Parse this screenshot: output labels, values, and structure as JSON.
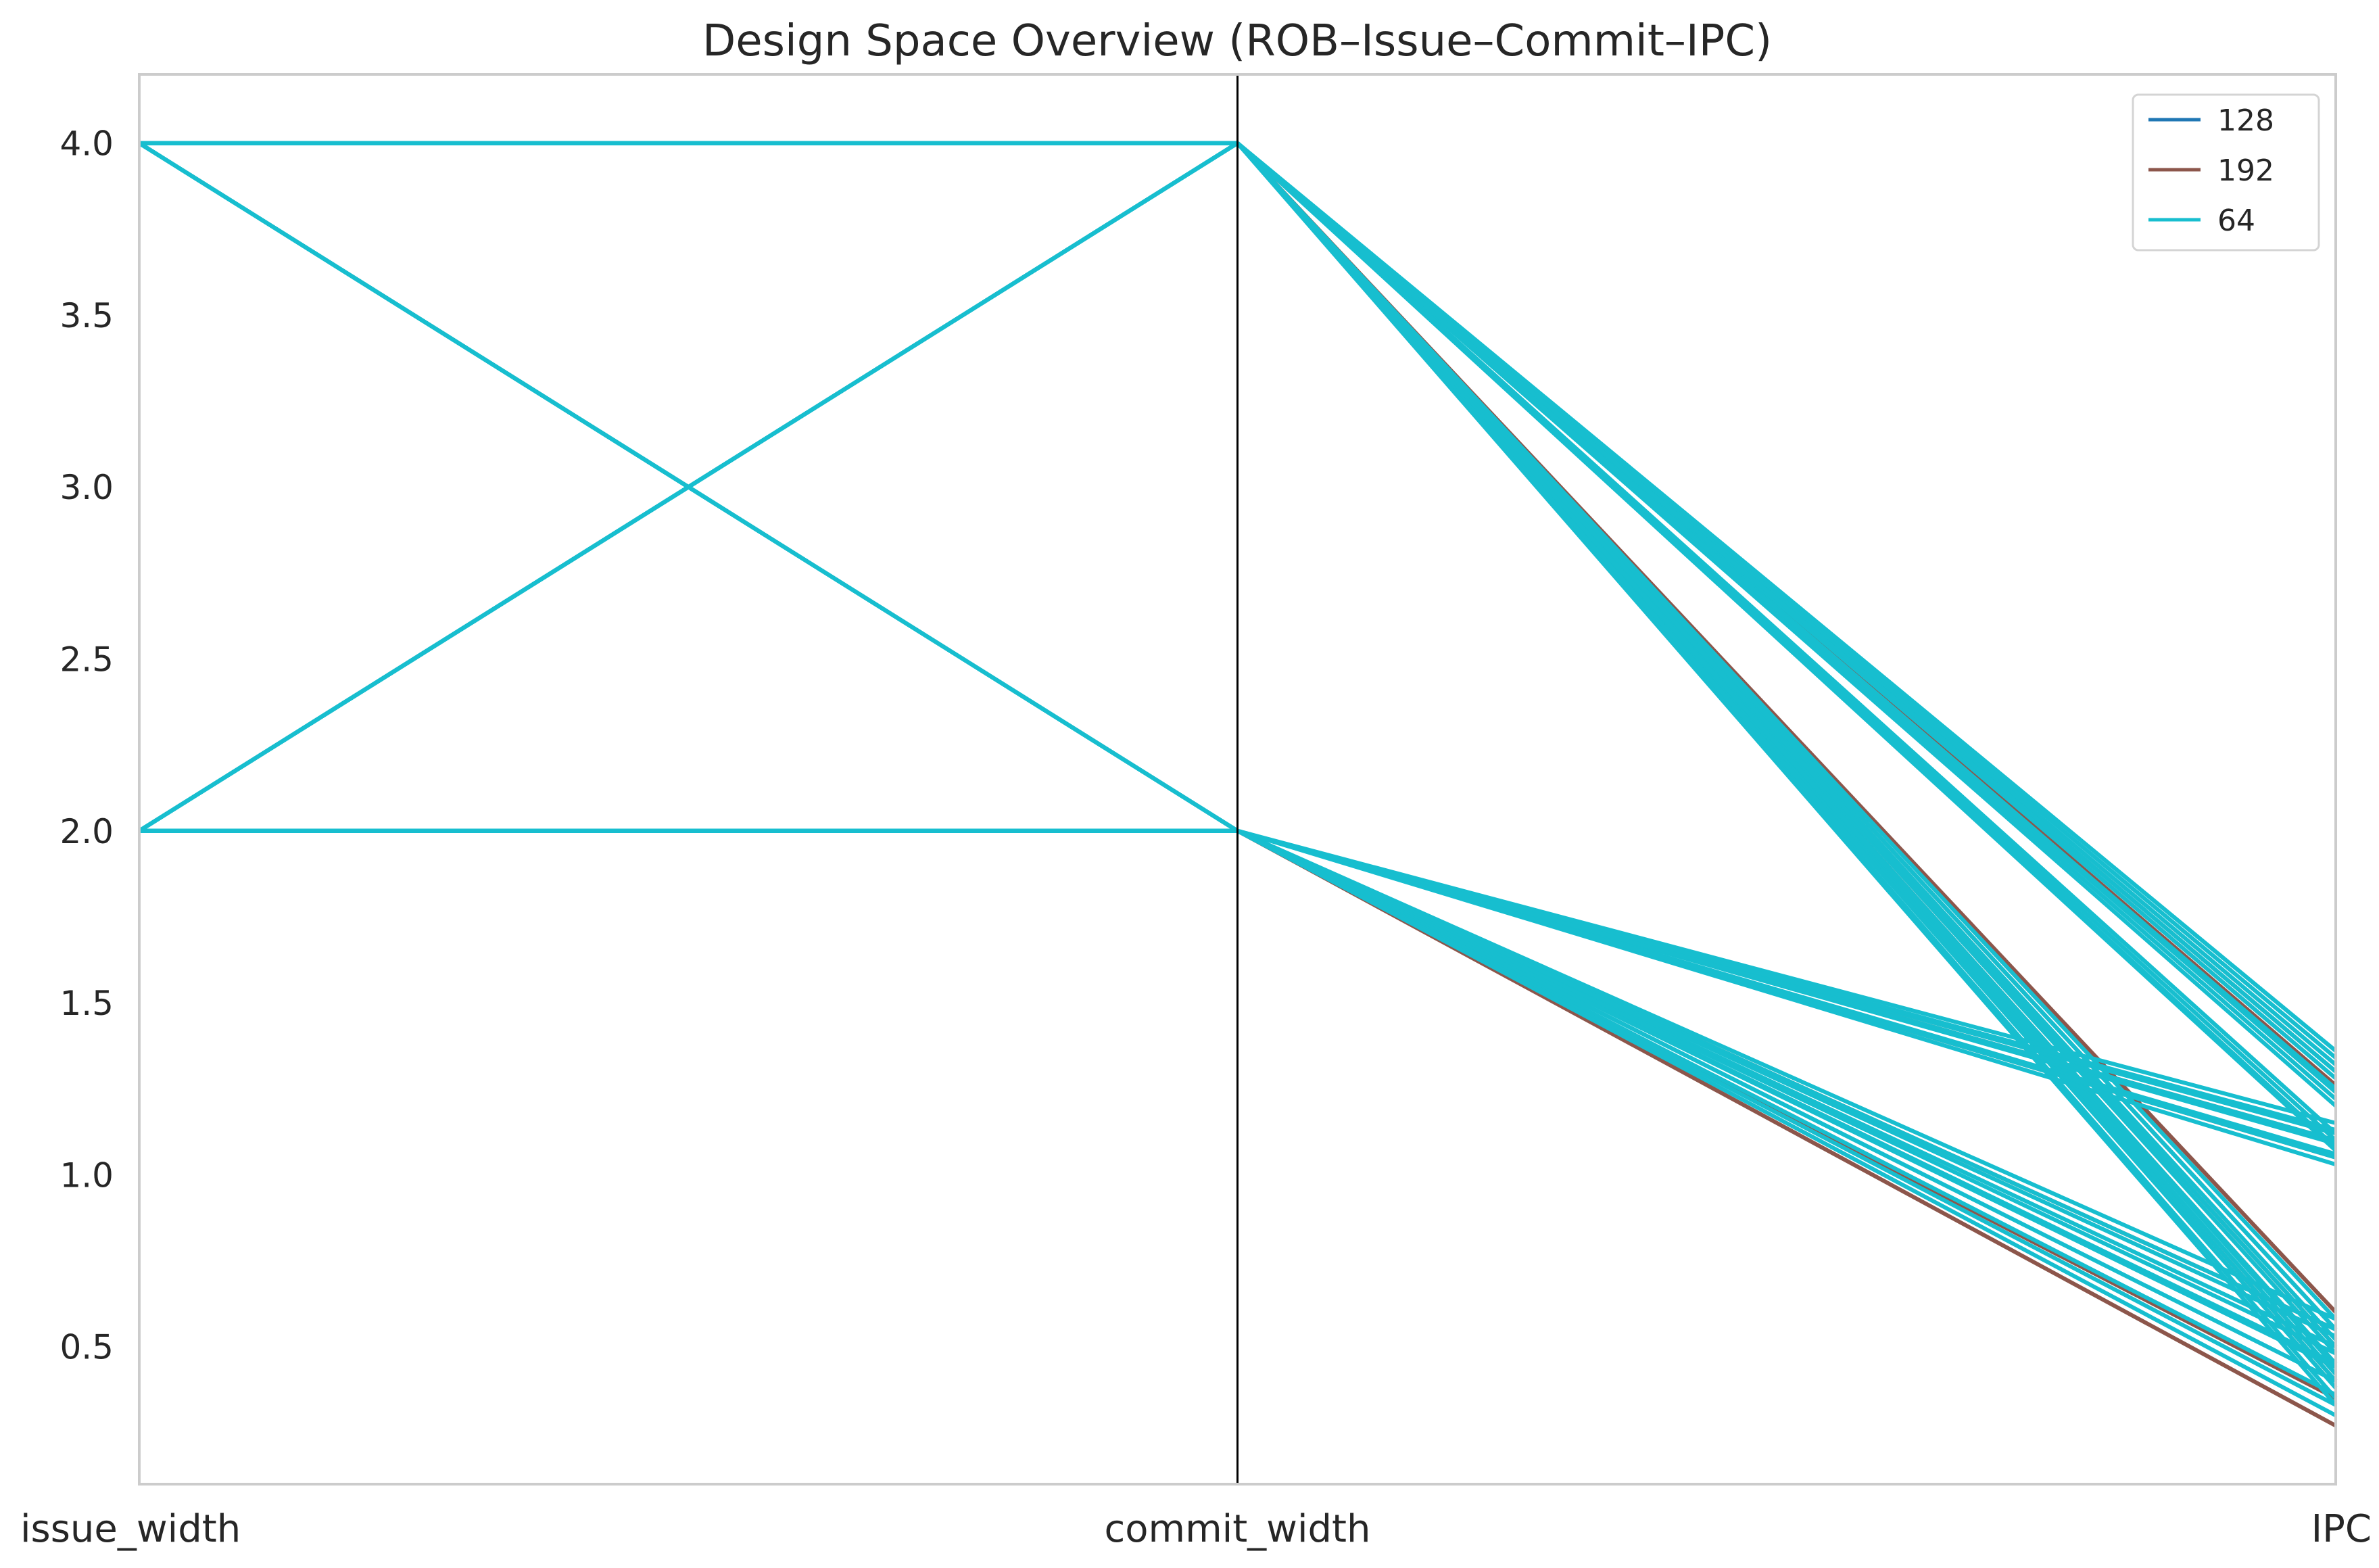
{
  "chart_data": {
    "type": "parallel_coordinates",
    "title": "Design Space Overview (ROB–Issue–Commit–IPC)",
    "axes": [
      "issue_width",
      "commit_width",
      "IPC"
    ],
    "yticks": [
      "0.5",
      "1.0",
      "1.5",
      "2.0",
      "2.5",
      "3.0",
      "3.5",
      "4.0"
    ],
    "ylim": [
      0.1,
      4.2
    ],
    "grid": false,
    "legend": {
      "placement": "top-right",
      "entries": [
        {
          "label": "128",
          "color": "#1f77b4"
        },
        {
          "label": "192",
          "color": "#8c564b"
        },
        {
          "label": "64",
          "color": "#17becf"
        }
      ]
    },
    "series": [
      {
        "name": "128",
        "color": "#1f77b4",
        "lines": []
      },
      {
        "name": "192",
        "color": "#8c564b",
        "lines": [
          [
            4,
            4,
            1.3
          ],
          [
            4,
            4,
            1.26
          ],
          [
            4,
            4,
            0.6
          ],
          [
            4,
            4,
            0.55
          ],
          [
            4,
            4,
            0.5
          ],
          [
            2,
            4,
            0.45
          ],
          [
            2,
            4,
            0.4
          ],
          [
            4,
            2,
            1.1
          ],
          [
            4,
            2,
            1.05
          ],
          [
            2,
            2,
            0.55
          ],
          [
            2,
            2,
            0.35
          ],
          [
            2,
            2,
            0.27
          ]
        ]
      },
      {
        "name": "64",
        "color": "#17becf",
        "lines": [
          [
            4,
            4,
            1.36
          ],
          [
            4,
            4,
            1.34
          ],
          [
            4,
            4,
            1.32
          ],
          [
            4,
            4,
            1.3
          ],
          [
            4,
            4,
            1.28
          ],
          [
            4,
            4,
            1.25
          ],
          [
            4,
            4,
            1.22
          ],
          [
            4,
            4,
            1.2
          ],
          [
            4,
            4,
            1.12
          ],
          [
            4,
            4,
            1.1
          ],
          [
            4,
            4,
            1.07
          ],
          [
            4,
            4,
            0.58
          ],
          [
            4,
            4,
            0.55
          ],
          [
            4,
            4,
            0.52
          ],
          [
            4,
            4,
            0.48
          ],
          [
            4,
            4,
            0.45
          ],
          [
            4,
            4,
            0.42
          ],
          [
            4,
            4,
            0.4
          ],
          [
            4,
            4,
            0.38
          ],
          [
            4,
            4,
            0.35
          ],
          [
            2,
            4,
            1.36
          ],
          [
            2,
            4,
            1.3
          ],
          [
            2,
            4,
            1.24
          ],
          [
            2,
            4,
            1.12
          ],
          [
            2,
            4,
            1.08
          ],
          [
            2,
            4,
            0.55
          ],
          [
            2,
            4,
            0.5
          ],
          [
            2,
            4,
            0.44
          ],
          [
            2,
            4,
            0.38
          ],
          [
            2,
            4,
            0.33
          ],
          [
            4,
            2,
            1.15
          ],
          [
            4,
            2,
            1.12
          ],
          [
            4,
            2,
            1.09
          ],
          [
            4,
            2,
            1.06
          ],
          [
            4,
            2,
            1.03
          ],
          [
            4,
            2,
            0.55
          ],
          [
            4,
            2,
            0.5
          ],
          [
            4,
            2,
            0.45
          ],
          [
            4,
            2,
            0.4
          ],
          [
            2,
            2,
            1.13
          ],
          [
            2,
            2,
            1.1
          ],
          [
            2,
            2,
            1.05
          ],
          [
            2,
            2,
            0.58
          ],
          [
            2,
            2,
            0.53
          ],
          [
            2,
            2,
            0.48
          ],
          [
            2,
            2,
            0.44
          ],
          [
            2,
            2,
            0.4
          ],
          [
            2,
            2,
            0.36
          ],
          [
            2,
            2,
            0.33
          ],
          [
            2,
            2,
            0.3
          ]
        ]
      }
    ]
  }
}
